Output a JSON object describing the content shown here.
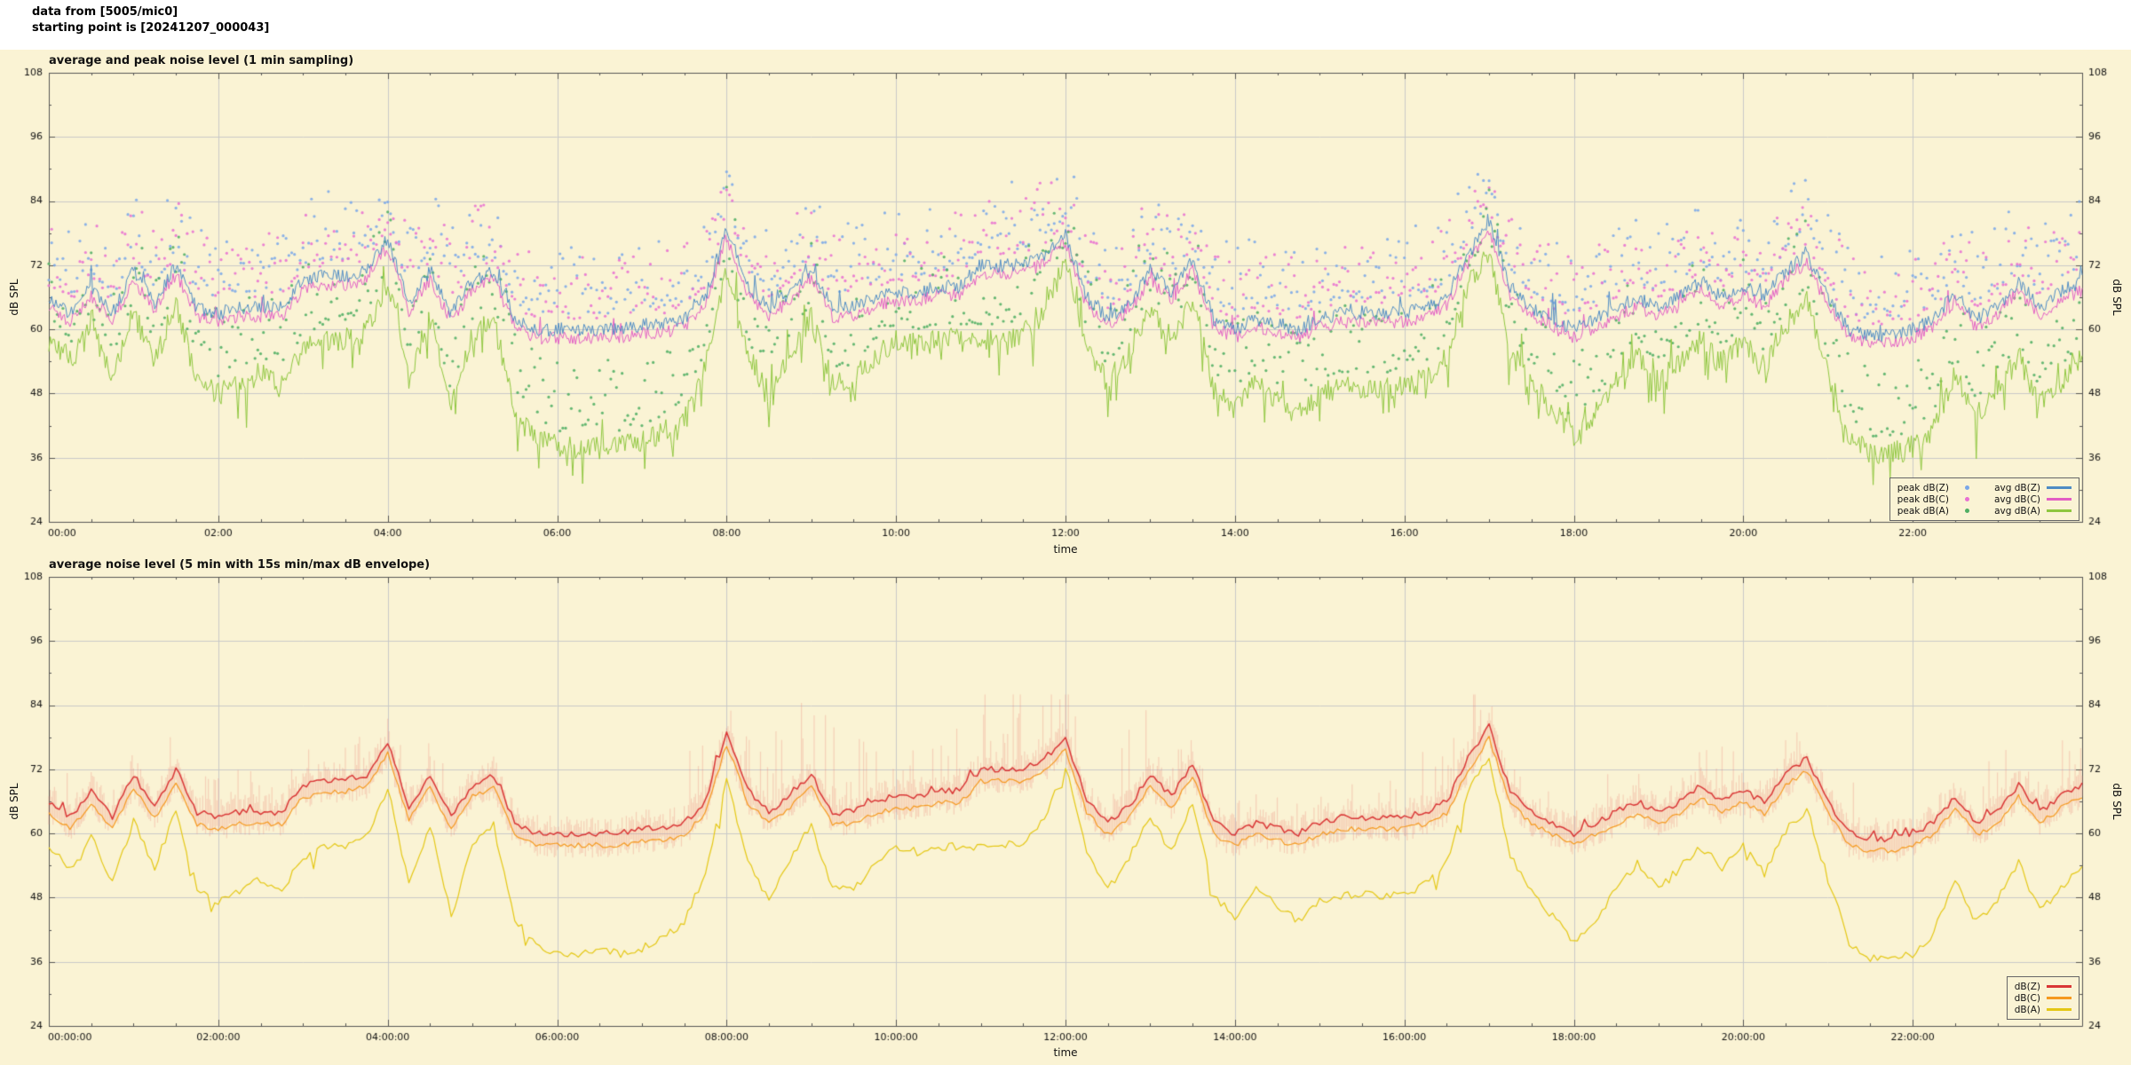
{
  "header": {
    "line1": "data from [5005/mic0]",
    "line2": "starting point is [20241207_000043]"
  },
  "figure": {
    "background": "#faf3d4",
    "grid_color": "#c8c8c8",
    "border_color": "#555555",
    "tick_text_color": "#111111"
  },
  "arrays": {
    "hours_step": 0.25,
    "avgZ": [
      66,
      63,
      68,
      63,
      71,
      65,
      72,
      64,
      63,
      64,
      64,
      64,
      69,
      70,
      70,
      71,
      77,
      65,
      71,
      63,
      69,
      71,
      62,
      60,
      60,
      60,
      60,
      60,
      61,
      61,
      62,
      66,
      79,
      68,
      64,
      67,
      71,
      64,
      64,
      66,
      67,
      67,
      68,
      68,
      72,
      72,
      72,
      74,
      78,
      66,
      62,
      65,
      71,
      67,
      73,
      62,
      60,
      62,
      61,
      60,
      62,
      63,
      63,
      63,
      63,
      64,
      66,
      74,
      80,
      68,
      64,
      62,
      60,
      62,
      64,
      66,
      64,
      66,
      69,
      66,
      68,
      66,
      71,
      74,
      66,
      60,
      59,
      59,
      60,
      62,
      67,
      62,
      64,
      69,
      64,
      67,
      69
    ],
    "avgA": [
      58,
      54,
      60,
      51,
      63,
      54,
      65,
      50,
      48,
      50,
      52,
      50,
      56,
      58,
      58,
      60,
      69,
      51,
      62,
      45,
      59,
      62,
      44,
      40,
      38,
      38,
      39,
      38,
      39,
      41,
      44,
      53,
      71,
      55,
      48,
      56,
      62,
      50,
      50,
      55,
      58,
      57,
      58,
      58,
      58,
      58,
      59,
      63,
      73,
      57,
      50,
      56,
      64,
      57,
      66,
      49,
      45,
      50,
      47,
      44,
      48,
      49,
      49,
      49,
      49,
      51,
      55,
      68,
      75,
      56,
      50,
      45,
      40,
      44,
      50,
      55,
      50,
      54,
      58,
      54,
      58,
      53,
      61,
      65,
      52,
      40,
      37,
      37,
      38,
      42,
      52,
      44,
      48,
      55,
      46,
      50,
      55
    ]
  },
  "chart_data": [
    {
      "type": "line",
      "title": "average and peak noise level (1 min sampling)",
      "xlabel": "time",
      "ylabel": "dB SPL",
      "ylabel_right": "dB SPL",
      "ylim": [
        24,
        108
      ],
      "yticks": [
        24,
        36,
        48,
        60,
        72,
        84,
        96,
        108
      ],
      "xtick_hours": [
        0,
        2,
        4,
        6,
        8,
        10,
        12,
        14,
        16,
        18,
        20,
        22
      ],
      "xtick_labels": [
        "00:00",
        "02:00",
        "04:00",
        "06:00",
        "08:00",
        "10:00",
        "12:00",
        "14:00",
        "16:00",
        "18:00",
        "20:00",
        "22:00"
      ],
      "grid": true,
      "legend_position": "bottom-right",
      "series": [
        {
          "name": "peak dB(Z)",
          "style": "points",
          "color": "#7aa7e8",
          "values_ref": "avgZ",
          "offset": 0,
          "peak_lo": 3,
          "peak_hi": 16
        },
        {
          "name": "peak dB(C)",
          "style": "points",
          "color": "#e86fd2",
          "values_ref": "avgZ",
          "offset": -1,
          "peak_lo": 3,
          "peak_hi": 15
        },
        {
          "name": "peak dB(A)",
          "style": "points",
          "color": "#4fae63",
          "values_ref": "avgA",
          "offset": 0,
          "peak_lo": 3,
          "peak_hi": 16
        },
        {
          "name": "avg dB(Z)",
          "style": "line",
          "color": "#4e8bc4",
          "values_ref": "avgZ",
          "offset": 0,
          "jitter": 1.3
        },
        {
          "name": "avg dB(C)",
          "style": "line",
          "color": "#e25ec4",
          "values_ref": "avgZ",
          "offset": -1.6,
          "jitter": 1.2
        },
        {
          "name": "avg dB(A)",
          "style": "line",
          "color": "#8ec63f",
          "values_ref": "avgA",
          "offset": 0,
          "jitter": 2.2
        }
      ],
      "legend": {
        "items": [
          {
            "label": "peak dB(Z)",
            "marker": "dot",
            "color": "#7aa7e8"
          },
          {
            "label": "peak dB(C)",
            "marker": "dot",
            "color": "#e86fd2"
          },
          {
            "label": "peak dB(A)",
            "marker": "dot",
            "color": "#4fae63"
          },
          {
            "label": "avg dB(Z)",
            "marker": "line",
            "color": "#4e8bc4"
          },
          {
            "label": "avg dB(C)",
            "marker": "line",
            "color": "#e25ec4"
          },
          {
            "label": "avg dB(A)",
            "marker": "line",
            "color": "#8ec63f"
          }
        ]
      }
    },
    {
      "type": "line",
      "title": "average noise level (5 min with 15s min/max dB envelope)",
      "xlabel": "time",
      "ylabel": "dB SPL",
      "ylabel_right": "dB SPL",
      "ylim": [
        24,
        108
      ],
      "yticks": [
        24,
        36,
        48,
        60,
        72,
        84,
        96,
        108
      ],
      "xtick_hours": [
        0,
        2,
        4,
        6,
        8,
        10,
        12,
        14,
        16,
        18,
        20,
        22
      ],
      "xtick_labels": [
        "00:00:00",
        "02:00:00",
        "04:00:00",
        "06:00:00",
        "08:00:00",
        "10:00:00",
        "12:00:00",
        "14:00:00",
        "16:00:00",
        "18:00:00",
        "20:00:00",
        "22:00:00"
      ],
      "grid": true,
      "legend_position": "bottom-right",
      "envelope": {
        "color": "rgba(233,118,108,0.28)",
        "base_ref": "avgZ",
        "max_cap": 86,
        "amps": [
          [
            0,
            5,
            8
          ],
          [
            5,
            7.5,
            3.5
          ],
          [
            7.5,
            13,
            16
          ],
          [
            13,
            16,
            7
          ],
          [
            16,
            17.5,
            13
          ],
          [
            17.5,
            19,
            8
          ],
          [
            19,
            21.5,
            14
          ],
          [
            21.5,
            22.5,
            4
          ],
          [
            22.5,
            24,
            11
          ]
        ]
      },
      "series": [
        {
          "name": "dB(Z)",
          "style": "line",
          "color": "#d93636",
          "values_ref": "avgZ",
          "offset": 0,
          "jitter": 0.6,
          "width": 1.5
        },
        {
          "name": "dB(C)",
          "style": "line",
          "color": "#f5991f",
          "values_ref": "avgZ",
          "offset": -2.2,
          "jitter": 0.5,
          "width": 1.2
        },
        {
          "name": "dB(A)",
          "style": "line",
          "color": "#e4c714",
          "values_ref": "avgA",
          "offset": -0.5,
          "jitter": 0.8,
          "width": 1.2
        }
      ],
      "legend": {
        "items": [
          {
            "label": "dB(Z)",
            "marker": "line",
            "color": "#d93636"
          },
          {
            "label": "dB(C)",
            "marker": "line",
            "color": "#f5991f"
          },
          {
            "label": "dB(A)",
            "marker": "line",
            "color": "#e4c714"
          }
        ]
      }
    }
  ]
}
